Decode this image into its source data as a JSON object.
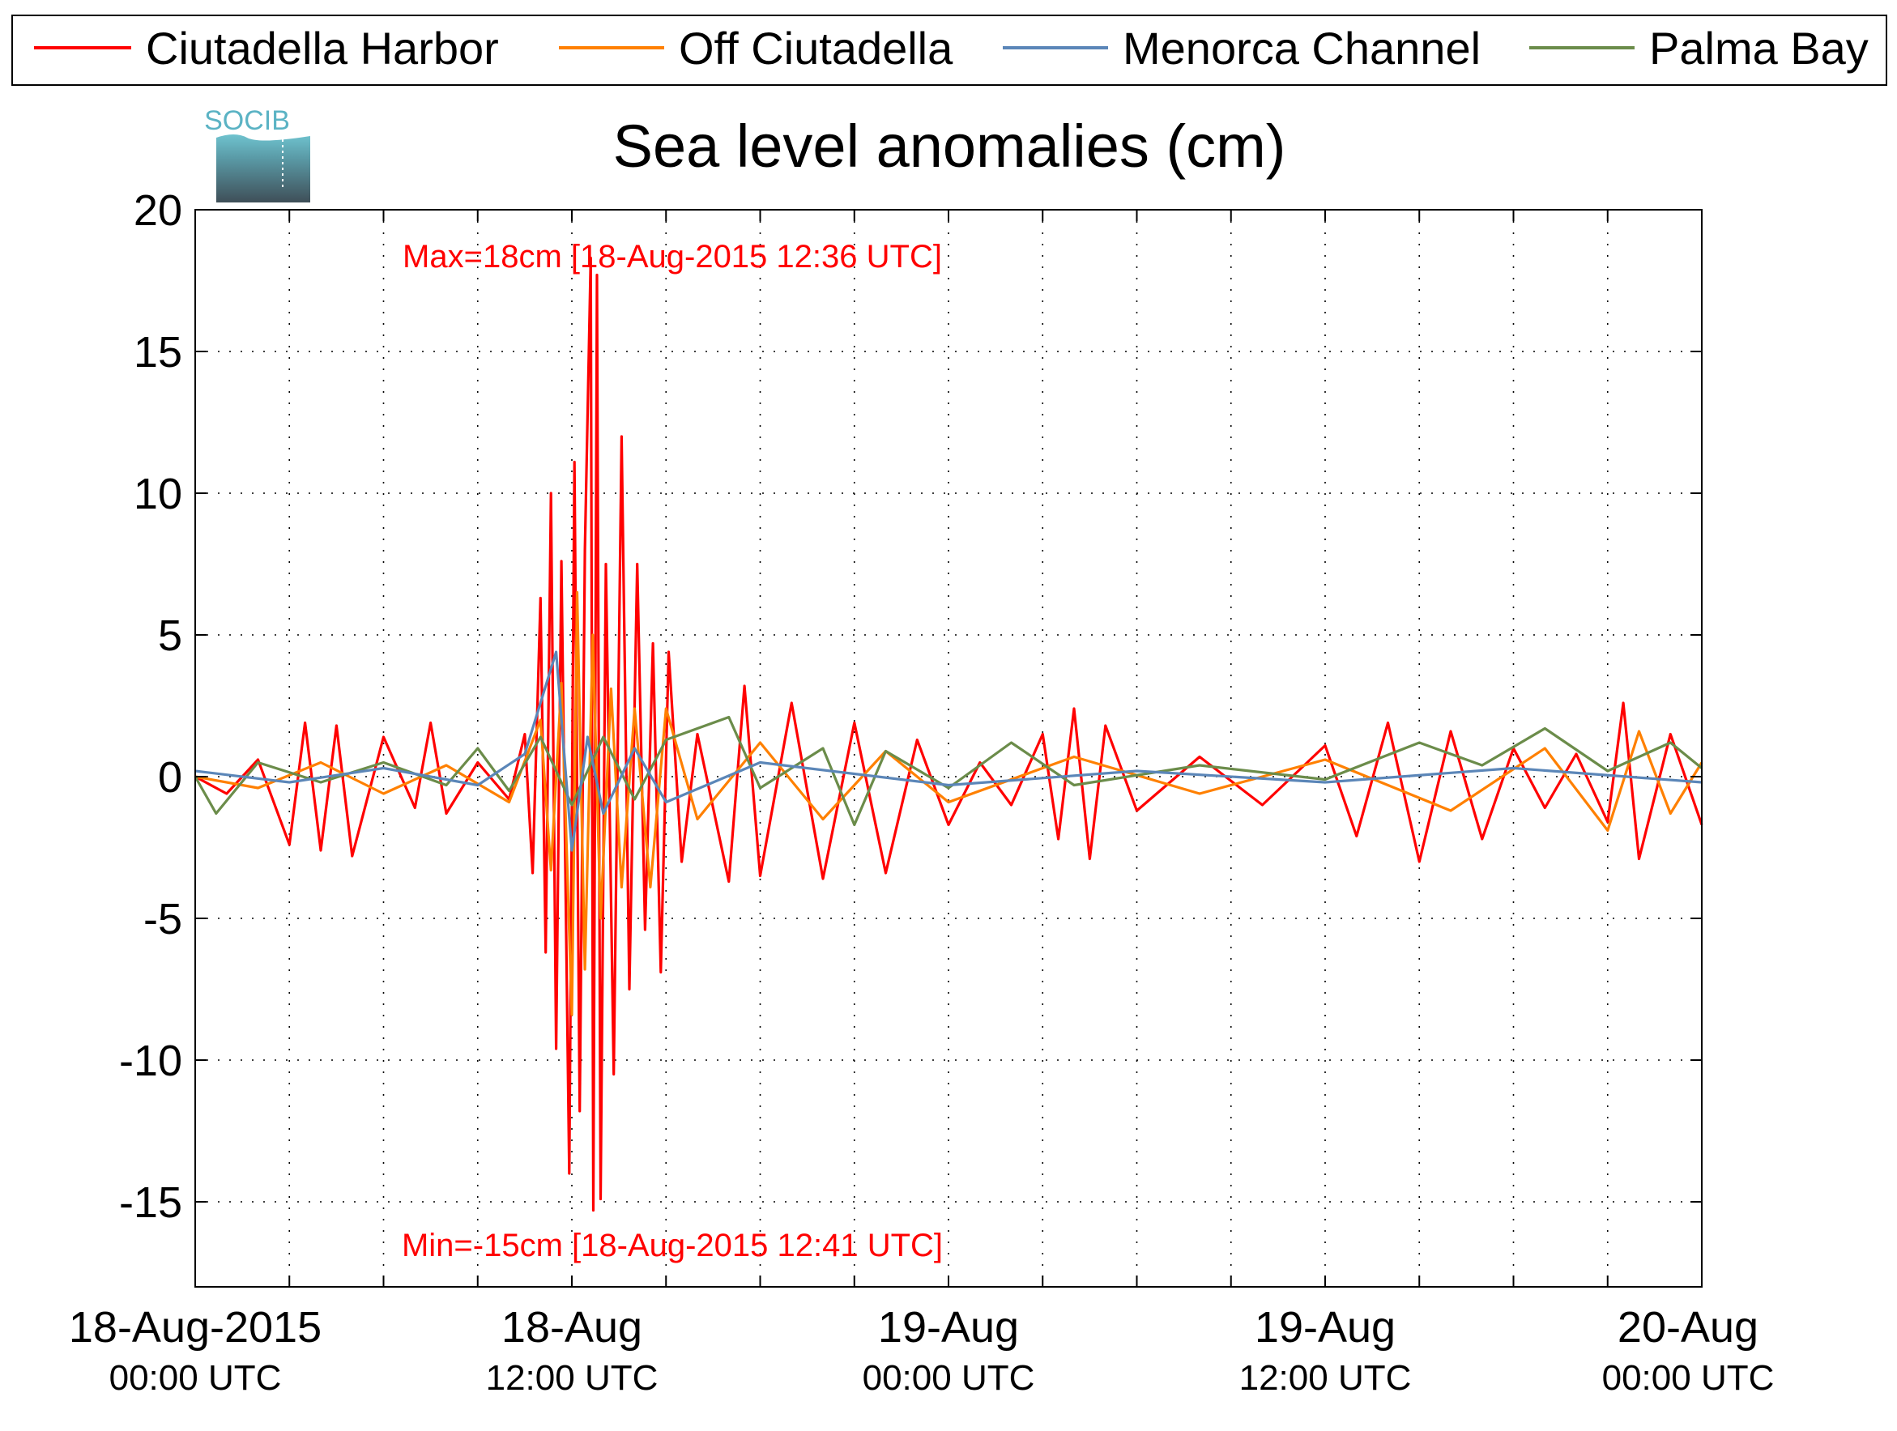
{
  "chart_data": {
    "type": "line",
    "title": "Sea level anomalies (cm)",
    "xlabel": "",
    "ylabel": "",
    "ylim": [
      -18,
      20
    ],
    "xlim": [
      "2015-08-18T00:00",
      "2015-08-20T00:00"
    ],
    "grid": true,
    "legend_position": "top",
    "logo_text": "SOCIB",
    "x_ticks": [
      {
        "line1": "18-Aug-2015",
        "line2": "00:00 UTC",
        "t": 0
      },
      {
        "line1": "18-Aug",
        "line2": "12:00 UTC",
        "t": 12
      },
      {
        "line1": "19-Aug",
        "line2": "00:00 UTC",
        "t": 24
      },
      {
        "line1": "19-Aug",
        "line2": "12:00 UTC",
        "t": 36
      },
      {
        "line1": "20-Aug",
        "line2": "00:00 UTC",
        "t": 48
      }
    ],
    "y_ticks": [
      20,
      15,
      10,
      5,
      0,
      -5,
      -10,
      -15
    ],
    "annotations": {
      "max": "Max=18cm [18-Aug-2015 12:36 UTC]",
      "min": "Min=-15cm [18-Aug-2015 12:41 UTC]"
    },
    "series": [
      {
        "name": "Ciutadella Harbor",
        "color": "#ff0000",
        "points": [
          [
            "2015-08-18T00:00",
            0.0
          ],
          [
            "2015-08-18T01:00",
            -0.6
          ],
          [
            "2015-08-18T02:00",
            0.6
          ],
          [
            "2015-08-18T03:00",
            -2.4
          ],
          [
            "2015-08-18T03:30",
            1.9
          ],
          [
            "2015-08-18T04:00",
            -2.6
          ],
          [
            "2015-08-18T04:30",
            1.8
          ],
          [
            "2015-08-18T05:00",
            -2.8
          ],
          [
            "2015-08-18T06:00",
            1.4
          ],
          [
            "2015-08-18T07:00",
            -1.1
          ],
          [
            "2015-08-18T07:30",
            1.9
          ],
          [
            "2015-08-18T08:00",
            -1.3
          ],
          [
            "2015-08-18T09:00",
            0.5
          ],
          [
            "2015-08-18T10:00",
            -0.8
          ],
          [
            "2015-08-18T10:30",
            1.5
          ],
          [
            "2015-08-18T10:45",
            -3.4
          ],
          [
            "2015-08-18T11:00",
            6.3
          ],
          [
            "2015-08-18T11:10",
            -6.2
          ],
          [
            "2015-08-18T11:20",
            10.0
          ],
          [
            "2015-08-18T11:30",
            -9.6
          ],
          [
            "2015-08-18T11:40",
            7.6
          ],
          [
            "2015-08-18T11:55",
            -14.0
          ],
          [
            "2015-08-18T12:05",
            11.1
          ],
          [
            "2015-08-18T12:15",
            -11.8
          ],
          [
            "2015-08-18T12:25",
            8.0
          ],
          [
            "2015-08-18T12:36",
            18.3
          ],
          [
            "2015-08-18T12:41",
            -15.3
          ],
          [
            "2015-08-18T12:48",
            17.7
          ],
          [
            "2015-08-18T12:55",
            -14.9
          ],
          [
            "2015-08-18T13:05",
            7.5
          ],
          [
            "2015-08-18T13:20",
            -10.5
          ],
          [
            "2015-08-18T13:35",
            12.0
          ],
          [
            "2015-08-18T13:50",
            -7.5
          ],
          [
            "2015-08-18T14:05",
            7.5
          ],
          [
            "2015-08-18T14:20",
            -5.4
          ],
          [
            "2015-08-18T14:35",
            4.7
          ],
          [
            "2015-08-18T14:50",
            -6.9
          ],
          [
            "2015-08-18T15:05",
            4.4
          ],
          [
            "2015-08-18T15:30",
            -3.0
          ],
          [
            "2015-08-18T16:00",
            1.5
          ],
          [
            "2015-08-18T17:00",
            -3.7
          ],
          [
            "2015-08-18T17:30",
            3.2
          ],
          [
            "2015-08-18T18:00",
            -3.5
          ],
          [
            "2015-08-18T19:00",
            2.6
          ],
          [
            "2015-08-18T20:00",
            -3.6
          ],
          [
            "2015-08-18T21:00",
            1.9
          ],
          [
            "2015-08-18T22:00",
            -3.4
          ],
          [
            "2015-08-18T23:00",
            1.3
          ],
          [
            "2015-08-19T00:00",
            -1.7
          ],
          [
            "2015-08-19T01:00",
            0.5
          ],
          [
            "2015-08-19T02:00",
            -1.0
          ],
          [
            "2015-08-19T03:00",
            1.5
          ],
          [
            "2015-08-19T03:30",
            -2.2
          ],
          [
            "2015-08-19T04:00",
            2.4
          ],
          [
            "2015-08-19T04:30",
            -2.9
          ],
          [
            "2015-08-19T05:00",
            1.8
          ],
          [
            "2015-08-19T06:00",
            -1.2
          ],
          [
            "2015-08-19T08:00",
            0.7
          ],
          [
            "2015-08-19T10:00",
            -1.0
          ],
          [
            "2015-08-19T12:00",
            1.1
          ],
          [
            "2015-08-19T13:00",
            -2.1
          ],
          [
            "2015-08-19T14:00",
            1.9
          ],
          [
            "2015-08-19T15:00",
            -3.0
          ],
          [
            "2015-08-19T16:00",
            1.6
          ],
          [
            "2015-08-19T17:00",
            -2.2
          ],
          [
            "2015-08-19T18:00",
            1.0
          ],
          [
            "2015-08-19T19:00",
            -1.1
          ],
          [
            "2015-08-19T20:00",
            0.8
          ],
          [
            "2015-08-19T21:00",
            -1.6
          ],
          [
            "2015-08-19T21:30",
            2.6
          ],
          [
            "2015-08-19T22:00",
            -2.9
          ],
          [
            "2015-08-19T23:00",
            1.5
          ],
          [
            "2015-08-20T00:00",
            -1.7
          ]
        ]
      },
      {
        "name": "Off Ciutadella",
        "color": "#ff8000",
        "points": [
          [
            "2015-08-18T00:00",
            0.0
          ],
          [
            "2015-08-18T02:00",
            -0.4
          ],
          [
            "2015-08-18T04:00",
            0.5
          ],
          [
            "2015-08-18T06:00",
            -0.6
          ],
          [
            "2015-08-18T08:00",
            0.4
          ],
          [
            "2015-08-18T10:00",
            -0.9
          ],
          [
            "2015-08-18T11:00",
            2.0
          ],
          [
            "2015-08-18T11:20",
            -3.3
          ],
          [
            "2015-08-18T11:40",
            3.3
          ],
          [
            "2015-08-18T12:00",
            -8.4
          ],
          [
            "2015-08-18T12:10",
            6.5
          ],
          [
            "2015-08-18T12:25",
            -6.8
          ],
          [
            "2015-08-18T12:40",
            5.0
          ],
          [
            "2015-08-18T12:55",
            -5.0
          ],
          [
            "2015-08-18T13:15",
            3.1
          ],
          [
            "2015-08-18T13:35",
            -3.9
          ],
          [
            "2015-08-18T14:00",
            2.4
          ],
          [
            "2015-08-18T14:30",
            -3.9
          ],
          [
            "2015-08-18T15:00",
            2.4
          ],
          [
            "2015-08-18T16:00",
            -1.5
          ],
          [
            "2015-08-18T18:00",
            1.2
          ],
          [
            "2015-08-18T20:00",
            -1.5
          ],
          [
            "2015-08-18T22:00",
            0.9
          ],
          [
            "2015-08-19T00:00",
            -0.9
          ],
          [
            "2015-08-19T04:00",
            0.7
          ],
          [
            "2015-08-19T08:00",
            -0.6
          ],
          [
            "2015-08-19T12:00",
            0.6
          ],
          [
            "2015-08-19T16:00",
            -1.2
          ],
          [
            "2015-08-19T19:00",
            1.0
          ],
          [
            "2015-08-19T21:00",
            -1.9
          ],
          [
            "2015-08-19T22:00",
            1.6
          ],
          [
            "2015-08-19T23:00",
            -1.3
          ],
          [
            "2015-08-20T00:00",
            0.5
          ]
        ]
      },
      {
        "name": "Menorca Channel",
        "color": "#5b86b8",
        "points": [
          [
            "2015-08-18T00:00",
            0.2
          ],
          [
            "2015-08-18T03:00",
            -0.2
          ],
          [
            "2015-08-18T06:00",
            0.3
          ],
          [
            "2015-08-18T09:00",
            -0.3
          ],
          [
            "2015-08-18T10:30",
            0.8
          ],
          [
            "2015-08-18T11:30",
            4.4
          ],
          [
            "2015-08-18T12:00",
            -2.6
          ],
          [
            "2015-08-18T12:30",
            1.4
          ],
          [
            "2015-08-18T13:00",
            -1.3
          ],
          [
            "2015-08-18T14:00",
            1.0
          ],
          [
            "2015-08-18T15:00",
            -0.9
          ],
          [
            "2015-08-18T18:00",
            0.5
          ],
          [
            "2015-08-19T00:00",
            -0.3
          ],
          [
            "2015-08-19T06:00",
            0.2
          ],
          [
            "2015-08-19T12:00",
            -0.2
          ],
          [
            "2015-08-19T18:00",
            0.3
          ],
          [
            "2015-08-20T00:00",
            -0.2
          ]
        ]
      },
      {
        "name": "Palma Bay",
        "color": "#6b8c4a",
        "points": [
          [
            "2015-08-18T00:00",
            0.0
          ],
          [
            "2015-08-18T00:40",
            -1.3
          ],
          [
            "2015-08-18T02:00",
            0.5
          ],
          [
            "2015-08-18T04:00",
            -0.2
          ],
          [
            "2015-08-18T06:00",
            0.5
          ],
          [
            "2015-08-18T08:00",
            -0.3
          ],
          [
            "2015-08-18T09:00",
            1.0
          ],
          [
            "2015-08-18T10:00",
            -0.5
          ],
          [
            "2015-08-18T11:00",
            1.4
          ],
          [
            "2015-08-18T12:00",
            -1.0
          ],
          [
            "2015-08-18T13:00",
            1.4
          ],
          [
            "2015-08-18T14:00",
            -0.8
          ],
          [
            "2015-08-18T15:00",
            1.3
          ],
          [
            "2015-08-18T17:00",
            2.1
          ],
          [
            "2015-08-18T18:00",
            -0.4
          ],
          [
            "2015-08-18T20:00",
            1.0
          ],
          [
            "2015-08-18T21:00",
            -1.7
          ],
          [
            "2015-08-18T22:00",
            0.9
          ],
          [
            "2015-08-19T00:00",
            -0.4
          ],
          [
            "2015-08-19T02:00",
            1.2
          ],
          [
            "2015-08-19T04:00",
            -0.3
          ],
          [
            "2015-08-19T08:00",
            0.4
          ],
          [
            "2015-08-19T12:00",
            -0.1
          ],
          [
            "2015-08-19T15:00",
            1.2
          ],
          [
            "2015-08-19T17:00",
            0.4
          ],
          [
            "2015-08-19T19:00",
            1.7
          ],
          [
            "2015-08-19T21:00",
            0.2
          ],
          [
            "2015-08-19T23:00",
            1.2
          ],
          [
            "2015-08-20T00:00",
            0.3
          ]
        ]
      }
    ]
  }
}
